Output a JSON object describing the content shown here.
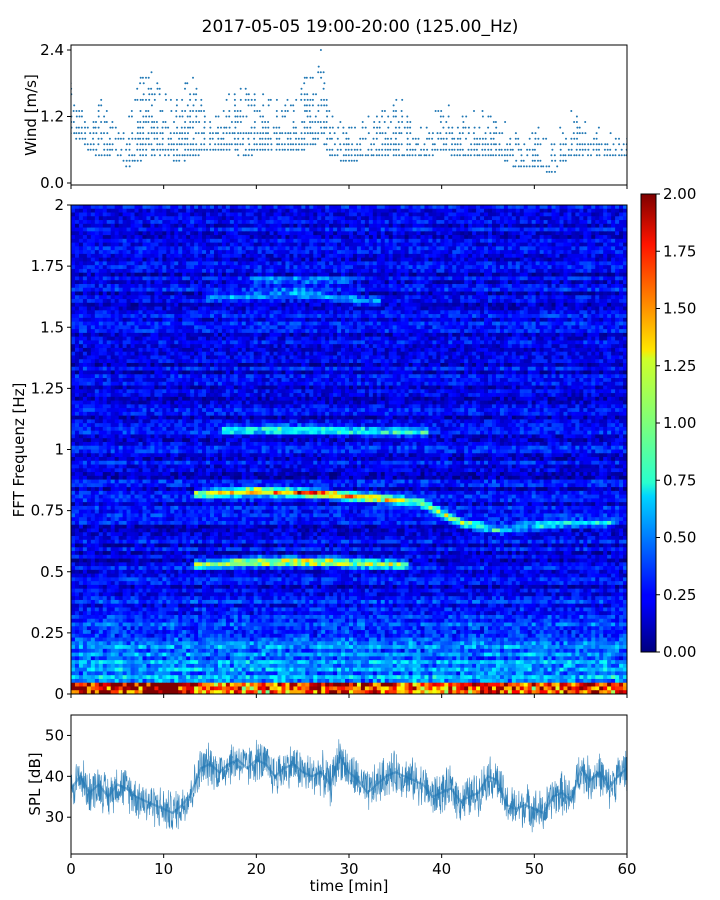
{
  "title": "2017-05-05 19:00-20:00 (125.00_Hz)",
  "colors": {
    "series": "#1f77b4",
    "spec_min": "#00007f",
    "spec_max": "#7f0000"
  },
  "chart_data": [
    {
      "id": "wind",
      "type": "scatter",
      "ylabel": "Wind [m/s]",
      "xlim": [
        0,
        60
      ],
      "ylim": [
        0,
        2.4
      ],
      "yticks": [
        "0.0",
        "1.2",
        "2.4"
      ],
      "levels": [
        0.1,
        0.2,
        0.3,
        0.4,
        0.5,
        0.6,
        0.7,
        0.8,
        0.9,
        1.0,
        1.1,
        1.2,
        1.3,
        1.4,
        1.5,
        1.6,
        1.7,
        1.8,
        1.9,
        2.0,
        2.1,
        2.4
      ],
      "envelope": {
        "t": [
          0,
          1,
          2,
          3,
          5,
          6,
          8,
          10,
          12,
          13,
          15,
          17,
          19,
          21,
          23,
          25,
          27,
          28,
          30,
          32,
          34,
          36,
          38,
          40,
          42,
          44,
          46,
          48,
          50,
          52,
          54,
          56,
          58,
          60
        ],
        "base": [
          0.9,
          0.8,
          0.6,
          0.5,
          0.5,
          0.3,
          0.5,
          0.5,
          0.4,
          0.5,
          0.6,
          0.6,
          0.5,
          0.6,
          0.6,
          0.6,
          0.8,
          0.5,
          0.4,
          0.5,
          0.5,
          0.5,
          0.5,
          0.6,
          0.5,
          0.5,
          0.5,
          0.3,
          0.3,
          0.2,
          0.5,
          0.5,
          0.5,
          0.5
        ],
        "peak": [
          1.8,
          1.4,
          1.2,
          1.5,
          1.2,
          1.0,
          2.4,
          1.6,
          1.6,
          2.1,
          1.2,
          1.6,
          1.7,
          1.6,
          1.4,
          1.8,
          2.4,
          1.2,
          1.0,
          1.2,
          1.3,
          1.6,
          1.0,
          1.4,
          1.3,
          1.3,
          1.3,
          1.0,
          1.0,
          0.8,
          1.3,
          1.0,
          0.9,
          0.9
        ]
      }
    },
    {
      "id": "spectrogram",
      "type": "heatmap",
      "ylabel": "FFT Frequenz [Hz]",
      "xlim": [
        0,
        60
      ],
      "ylim": [
        0,
        2
      ],
      "yticks": [
        "0",
        "0.25",
        "0.5",
        "0.75",
        "1",
        "1.25",
        "1.5",
        "1.75",
        "2"
      ],
      "colorbar": {
        "colormap": "jet",
        "range": [
          0,
          2
        ],
        "ticks": [
          "0.00",
          "0.25",
          "0.50",
          "0.75",
          "1.00",
          "1.25",
          "1.50",
          "1.75",
          "2.00"
        ]
      },
      "background_level": 0.22,
      "tonal_lines": [
        {
          "t": [
            14,
            20,
            27,
            33,
            38,
            42,
            46,
            52,
            58
          ],
          "f": [
            0.82,
            0.83,
            0.82,
            0.8,
            0.78,
            0.7,
            0.67,
            0.69,
            0.7
          ],
          "level": [
            0.9,
            1.4,
            1.5,
            1.2,
            0.9,
            0.9,
            0.7,
            0.6,
            0.5
          ]
        },
        {
          "t": [
            14,
            20,
            28,
            36
          ],
          "f": [
            0.53,
            0.54,
            0.54,
            0.53
          ],
          "level": [
            1.0,
            1.4,
            1.4,
            0.9
          ]
        },
        {
          "t": [
            17,
            25,
            38
          ],
          "f": [
            1.08,
            1.08,
            1.07
          ],
          "level": [
            0.6,
            0.7,
            0.6
          ]
        },
        {
          "t": [
            15,
            25,
            33
          ],
          "f": [
            1.62,
            1.64,
            1.6
          ],
          "level": [
            0.4,
            0.5,
            0.4
          ]
        },
        {
          "t": [
            20,
            30
          ],
          "f": [
            1.69,
            1.69
          ],
          "level": [
            0.35,
            0.35
          ]
        }
      ],
      "low_band": {
        "t": [
          0,
          5,
          10,
          15,
          20,
          25,
          30,
          35,
          40,
          45,
          50,
          55,
          60
        ],
        "level": [
          1.3,
          1.2,
          1.5,
          1.0,
          0.9,
          1.0,
          1.3,
          1.1,
          0.8,
          1.2,
          1.0,
          1.2,
          1.0
        ]
      }
    },
    {
      "id": "spl",
      "type": "line",
      "xlabel": "time [min]",
      "ylabel": "SPL [dB]",
      "xlim": [
        0,
        60
      ],
      "ylim": [
        21,
        55
      ],
      "xticks": [
        "0",
        "10",
        "20",
        "30",
        "40",
        "50",
        "60"
      ],
      "yticks": [
        "30",
        "40",
        "50"
      ],
      "x": [
        0,
        1,
        2,
        3,
        4,
        5,
        6,
        7,
        8,
        9,
        10,
        11,
        12,
        13,
        14,
        15,
        16,
        17,
        18,
        19,
        20,
        21,
        22,
        23,
        24,
        25,
        26,
        27,
        28,
        29,
        30,
        31,
        32,
        33,
        34,
        35,
        36,
        37,
        38,
        39,
        40,
        41,
        42,
        43,
        44,
        45,
        46,
        47,
        48,
        49,
        50,
        51,
        52,
        53,
        54,
        55,
        56,
        57,
        58,
        59,
        60
      ],
      "y": [
        37,
        40,
        36,
        38,
        35,
        38,
        37,
        35,
        34,
        33,
        32,
        31,
        33,
        36,
        42,
        43,
        41,
        43,
        44,
        42,
        44,
        43,
        40,
        42,
        43,
        41,
        40,
        41,
        38,
        45,
        41,
        39,
        36,
        38,
        40,
        41,
        40,
        39,
        38,
        35,
        36,
        37,
        34,
        35,
        36,
        40,
        39,
        33,
        32,
        33,
        32,
        31,
        35,
        36,
        34,
        42,
        39,
        41,
        37,
        40,
        42
      ],
      "spread": 5
    }
  ]
}
